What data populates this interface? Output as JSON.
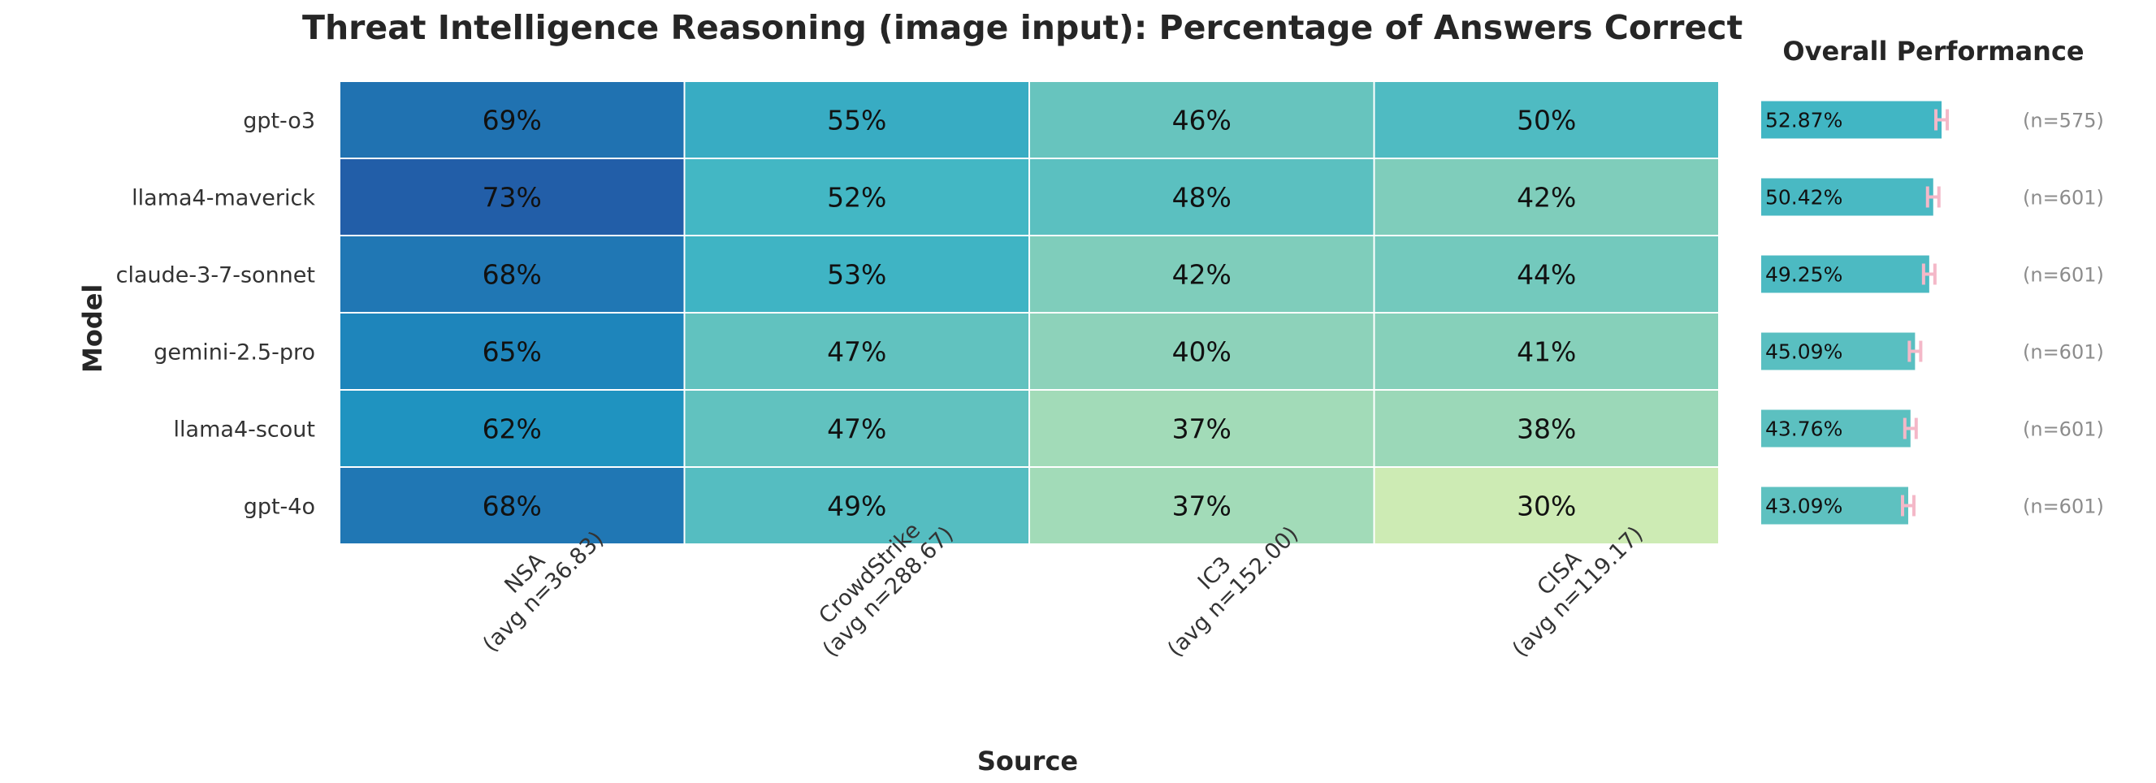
{
  "chart_data": [
    {
      "type": "heatmap",
      "title": "Threat Intelligence Reasoning (image input): Percentage of Answers Correct",
      "xlabel": "Source",
      "ylabel": "Model",
      "rows": [
        "gpt-o3",
        "llama4-maverick",
        "claude-3-7-sonnet",
        "gemini-2.5-pro",
        "llama4-scout",
        "gpt-4o"
      ],
      "columns": [
        {
          "name": "NSA",
          "sub": "(avg n=36.83)"
        },
        {
          "name": "CrowdStrike",
          "sub": "(avg n=288.67)"
        },
        {
          "name": "IC3",
          "sub": "(avg n=152.00)"
        },
        {
          "name": "CISA",
          "sub": "(avg n=119.17)"
        }
      ],
      "values": [
        [
          69,
          55,
          46,
          50
        ],
        [
          73,
          52,
          48,
          42
        ],
        [
          68,
          53,
          42,
          44
        ],
        [
          65,
          47,
          40,
          41
        ],
        [
          62,
          47,
          37,
          38
        ],
        [
          68,
          49,
          37,
          30
        ]
      ],
      "value_suffix": "%",
      "colormap": "YlGnBu",
      "grid": true
    },
    {
      "type": "bar",
      "orientation": "horizontal",
      "title": "Overall Performance",
      "categories": [
        "gpt-o3",
        "llama4-maverick",
        "claude-3-7-sonnet",
        "gemini-2.5-pro",
        "llama4-scout",
        "gpt-4o"
      ],
      "values": [
        52.87,
        50.42,
        49.25,
        45.09,
        43.76,
        43.09
      ],
      "value_labels": [
        "52.87%",
        "50.42%",
        "49.25%",
        "45.09%",
        "43.76%",
        "43.09%"
      ],
      "n_labels": [
        "(n=575)",
        "(n=601)",
        "(n=601)",
        "(n=601)",
        "(n=601)",
        "(n=601)"
      ],
      "error_bars": true,
      "error_color": "#f4b8c8"
    }
  ]
}
